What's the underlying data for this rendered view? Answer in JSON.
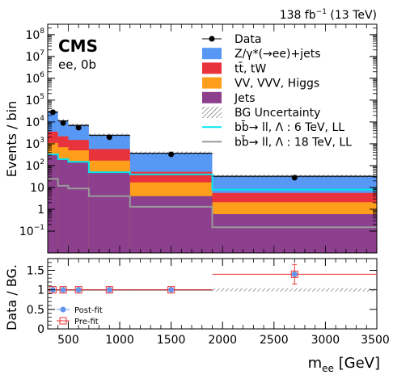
{
  "header": {
    "lumi_text_prefix": "138 fb",
    "lumi_text_sup": "−1",
    "lumi_text_suffix": " (13 TeV)",
    "experiment": "CMS",
    "selection": "ee, 0b"
  },
  "chart_data": [
    {
      "type": "bar",
      "subtype": "stacked-histogram-log",
      "ylabel": "Events / bin",
      "yscale": "log",
      "ylim": [
        0.01,
        300000000
      ],
      "xlim": [
        300,
        3500
      ],
      "bin_edges": [
        300,
        400,
        500,
        700,
        1100,
        1900,
        3500
      ],
      "yticks": [
        {
          "v": 100000000.0,
          "base": "10",
          "exp": "8"
        },
        {
          "v": 10000000.0,
          "base": "10",
          "exp": "7"
        },
        {
          "v": 1000000.0,
          "base": "10",
          "exp": "6"
        },
        {
          "v": 100000.0,
          "base": "10",
          "exp": "5"
        },
        {
          "v": 10000.0,
          "base": "10",
          "exp": "4"
        },
        {
          "v": 1000.0,
          "base": "10",
          "exp": "3"
        },
        {
          "v": 100.0,
          "base": "10",
          "exp": "2"
        },
        {
          "v": 10,
          "base": "10",
          "exp": ""
        },
        {
          "v": 1,
          "base": "1",
          "exp": ""
        },
        {
          "v": 0.1,
          "base": "10",
          "exp": "−1"
        }
      ],
      "stack": [
        {
          "name": "Jets",
          "color": "#8c3f8c",
          "values": [
            300,
            200,
            150,
            50,
            4,
            0.6
          ]
        },
        {
          "name": "VV, VVV, Higgs",
          "color": "#ff9e1a",
          "values": [
            800,
            500,
            350,
            120,
            13,
            1.5
          ]
        },
        {
          "name": "tt̄, tW",
          "color": "#e8323c",
          "values": [
            2500,
            1500,
            1000,
            400,
            35,
            3.5
          ]
        },
        {
          "name": "Z/γ*(→ee)+jets",
          "color": "#5898f5",
          "values": [
            25000,
            9000,
            5500,
            1900,
            320,
            27
          ]
        }
      ],
      "data_points": [
        {
          "x": 350,
          "y": 28000
        },
        {
          "x": 450,
          "y": 9000
        },
        {
          "x": 600,
          "y": 5500
        },
        {
          "x": 900,
          "y": 2000
        },
        {
          "x": 1500,
          "y": 330
        },
        {
          "x": 2700,
          "y": 28
        }
      ],
      "signals": [
        {
          "name": "bb̄→ ll,  Λ : 6 TeV, LL",
          "color": "#00e5ee",
          "values": [
            330,
            200,
            150,
            50,
            40,
            8
          ]
        },
        {
          "name": "bb̄→ ll,  Λ : 18 TeV, LL",
          "color": "#9a9a9a",
          "values": [
            25,
            12,
            9,
            4,
            1.3,
            0.15
          ]
        }
      ],
      "legend": {
        "placement": "top-right",
        "entries": [
          {
            "kind": "marker",
            "label": "Data"
          },
          {
            "kind": "box",
            "label": "Z/γ*(→ee)+jets",
            "color": "#5898f5"
          },
          {
            "kind": "box",
            "label": "tt̄, tW",
            "color": "#e8323c"
          },
          {
            "kind": "box",
            "label": "VV, VVV, Higgs",
            "color": "#ff9e1a"
          },
          {
            "kind": "box",
            "label": "Jets",
            "color": "#8c3f8c"
          },
          {
            "kind": "hatch",
            "label": "BG Uncertainty"
          },
          {
            "kind": "line",
            "label": "bb̄→ ll,   Λ : 6 TeV, LL",
            "color": "#00e5ee"
          },
          {
            "kind": "line",
            "label": "bb̄→ ll,   Λ : 18 TeV, LL",
            "color": "#9a9a9a"
          }
        ]
      }
    },
    {
      "type": "scatter",
      "subtype": "ratio",
      "ylabel": "Data / BG.",
      "ylim": [
        0,
        1.8
      ],
      "xlim": [
        300,
        3500
      ],
      "xlabel_main": "m",
      "xlabel_sub": "ee",
      "xlabel_unit": " [GeV]",
      "yticks": [
        "0",
        "0.5",
        "1",
        "1.5"
      ],
      "xticks": [
        "500",
        "1000",
        "1500",
        "2000",
        "2500",
        "3000",
        "3500"
      ],
      "reference_line": 1.0,
      "series": [
        {
          "name": "Post-fit",
          "color": "#6495ed",
          "x": [
            350,
            450,
            600,
            900,
            1500,
            2700
          ],
          "y": [
            1.0,
            1.0,
            1.0,
            1.0,
            1.0,
            1.4
          ]
        },
        {
          "name": "Pre-fit",
          "color": "#e83030",
          "x": [
            350,
            450,
            600,
            900,
            1500,
            2700
          ],
          "y": [
            1.0,
            1.0,
            1.0,
            1.0,
            1.0,
            1.4
          ]
        }
      ],
      "errors_y": [
        0.02,
        0.02,
        0.02,
        0.03,
        0.05,
        0.25
      ],
      "xerr_bins": [
        [
          300,
          400
        ],
        [
          400,
          500
        ],
        [
          500,
          700
        ],
        [
          700,
          1100
        ],
        [
          1100,
          1900
        ],
        [
          1900,
          3500
        ]
      ]
    }
  ]
}
